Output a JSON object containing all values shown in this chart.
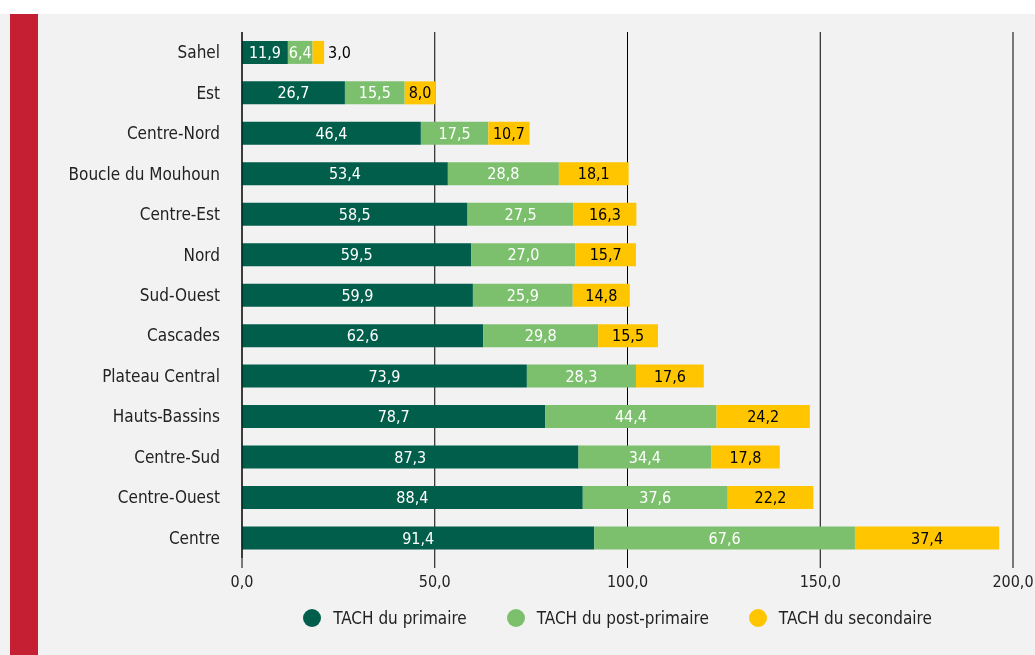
{
  "chart_data": {
    "type": "bar",
    "orientation": "horizontal",
    "stacked": true,
    "grid": "x",
    "legend": "bottom",
    "marker": "circle",
    "categories": [
      "Sahel",
      "Est",
      "Centre-Nord",
      "Boucle du Mouhoun",
      "Centre-Est",
      "Nord",
      "Sud-Ouest",
      "Cascades",
      "Plateau Central",
      "Hauts-Bassins",
      "Centre-Sud",
      "Centre-Ouest",
      "Centre"
    ],
    "series": [
      {
        "name": "TACH du primaire",
        "color": "#005e4b",
        "values": [
          11.9,
          26.7,
          46.4,
          53.4,
          58.5,
          59.5,
          59.9,
          62.6,
          73.9,
          78.7,
          87.3,
          88.4,
          91.4
        ],
        "value_labels": [
          "11,9",
          "26,7",
          "46,4",
          "53,4",
          "58,5",
          "59,5",
          "59,9",
          "62,6",
          "73,9",
          "78,7",
          "87,3",
          "88,4",
          "91,4"
        ]
      },
      {
        "name": "TACH du post-primaire",
        "color": "#7cc06e",
        "values": [
          6.4,
          15.5,
          17.5,
          28.8,
          27.5,
          27.0,
          25.9,
          29.8,
          28.3,
          44.4,
          34.4,
          37.6,
          67.6
        ],
        "value_labels": [
          "6,4",
          "15,5",
          "17,5",
          "28,8",
          "27,5",
          "27,0",
          "25,9",
          "29,8",
          "28,3",
          "44,4",
          "34,4",
          "37,6",
          "67,6"
        ]
      },
      {
        "name": "TACH du secondaire",
        "color": "#ffc600",
        "values": [
          3.0,
          8.0,
          10.7,
          18.1,
          16.3,
          15.7,
          14.8,
          15.5,
          17.6,
          24.2,
          17.8,
          22.2,
          37.4
        ],
        "value_labels": [
          "3,0",
          "8,0",
          "10,7",
          "18,1",
          "16,3",
          "15,7",
          "14,8",
          "15,5",
          "17,6",
          "24,2",
          "17,8",
          "22,2",
          "37,4"
        ]
      }
    ],
    "xlim": [
      0,
      200
    ],
    "xticks": [
      {
        "value": 0,
        "label": "0,0"
      },
      {
        "value": 50,
        "label": "50,0"
      },
      {
        "value": 100,
        "label": "100,0"
      },
      {
        "value": 150,
        "label": "150,0"
      },
      {
        "value": 200,
        "label": "200,0"
      }
    ]
  }
}
